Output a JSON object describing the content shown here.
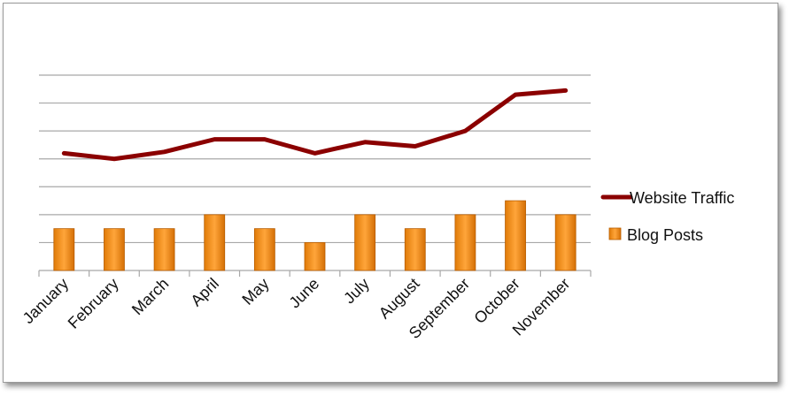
{
  "chart_data": {
    "type": "bar",
    "categories": [
      "January",
      "February",
      "March",
      "April",
      "May",
      "June",
      "July",
      "August",
      "September",
      "October",
      "November"
    ],
    "series": [
      {
        "name": "Website Traffic",
        "type": "line",
        "color": "#8b0000",
        "values": [
          4.2,
          4.0,
          4.25,
          4.7,
          4.7,
          4.2,
          4.6,
          4.45,
          5.0,
          6.3,
          6.45
        ]
      },
      {
        "name": "Blog Posts",
        "type": "bar",
        "color": "#f28a0c",
        "values": [
          1.5,
          1.5,
          1.5,
          2.0,
          1.5,
          1.0,
          2.0,
          1.5,
          2.0,
          2.5,
          2.0
        ]
      }
    ],
    "ylim": [
      0,
      7
    ],
    "y_gridlines": [
      1,
      2,
      3,
      4,
      5,
      6,
      7
    ],
    "y_tick_labels_shown": false,
    "grid": true,
    "legend_position": "right"
  }
}
